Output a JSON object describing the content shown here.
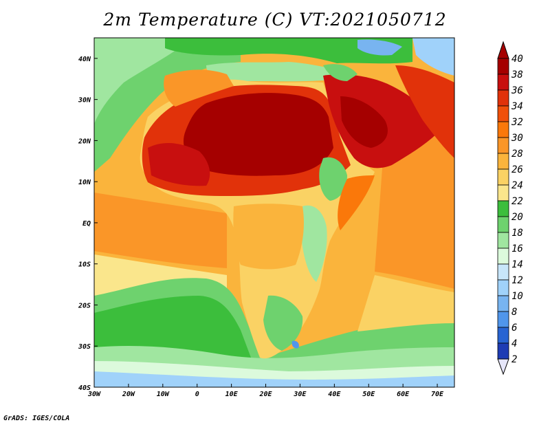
{
  "title": "2m Temperature (C) VT:2021050712",
  "credit": "GrADS: IGES/COLA",
  "map": {
    "lon_range": [
      -30,
      75
    ],
    "lat_range": [
      -40,
      45
    ],
    "lon_ticks": [
      {
        "value": -30,
        "label": "30W"
      },
      {
        "value": -20,
        "label": "20W"
      },
      {
        "value": -10,
        "label": "10W"
      },
      {
        "value": 0,
        "label": "0"
      },
      {
        "value": 10,
        "label": "10E"
      },
      {
        "value": 20,
        "label": "20E"
      },
      {
        "value": 30,
        "label": "30E"
      },
      {
        "value": 40,
        "label": "40E"
      },
      {
        "value": 50,
        "label": "50E"
      },
      {
        "value": 60,
        "label": "60E"
      },
      {
        "value": 70,
        "label": "70E"
      }
    ],
    "lat_ticks": [
      {
        "value": 40,
        "label": "40N"
      },
      {
        "value": 30,
        "label": "30N"
      },
      {
        "value": 20,
        "label": "20N"
      },
      {
        "value": 10,
        "label": "10N"
      },
      {
        "value": 0,
        "label": "EQ"
      },
      {
        "value": -10,
        "label": "10S"
      },
      {
        "value": -20,
        "label": "20S"
      },
      {
        "value": -30,
        "label": "30S"
      },
      {
        "value": -40,
        "label": "40S"
      }
    ]
  },
  "colorbar": {
    "labels": [
      "40",
      "38",
      "36",
      "34",
      "32",
      "30",
      "28",
      "26",
      "24",
      "22",
      "20",
      "18",
      "16",
      "14",
      "12",
      "10",
      "8",
      "6",
      "4",
      "2"
    ],
    "colors": [
      "#a50000",
      "#c80f0f",
      "#e1320a",
      "#f0500a",
      "#fa780a",
      "#fa9628",
      "#fab43c",
      "#fad264",
      "#fae68c",
      "#3cbe3c",
      "#6ed26e",
      "#a0e6a0",
      "#dcfadc",
      "#c8e6fa",
      "#a0d2fa",
      "#78b4f0",
      "#5096eb",
      "#2864d2",
      "#1e3cb4",
      "#0a0a6e"
    ],
    "over_color": "#a50000",
    "under_color": "#e6e6fa"
  }
}
